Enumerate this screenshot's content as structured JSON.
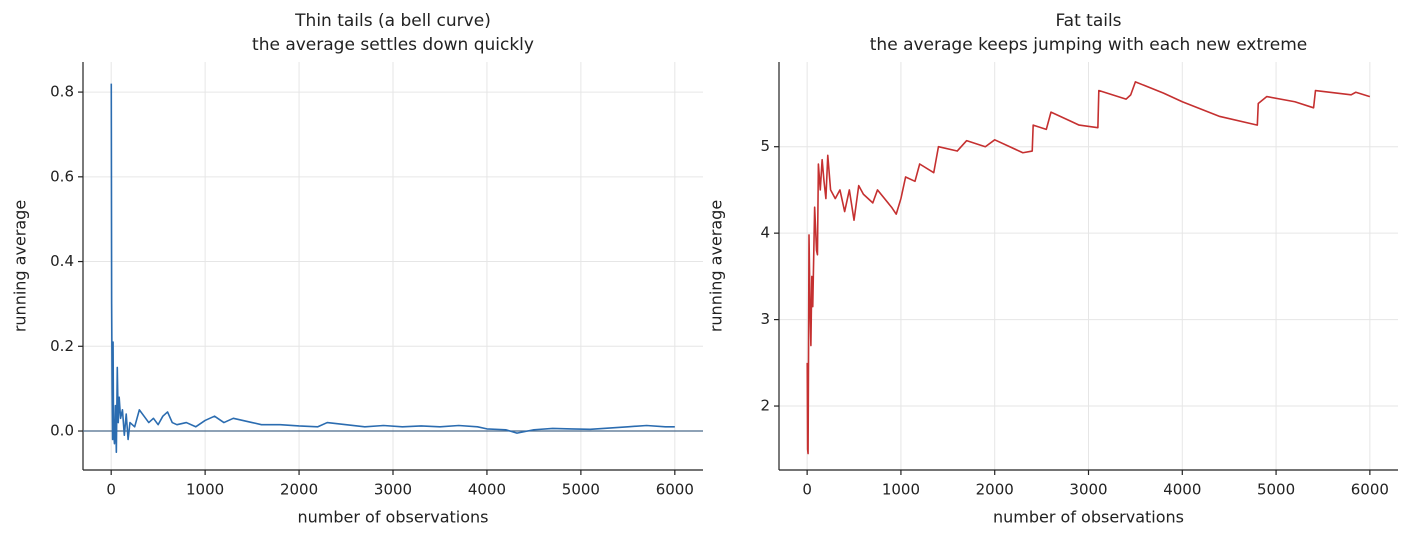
{
  "chart_data": [
    {
      "type": "line",
      "title": "Thin tails (a bell curve)",
      "subtitle": "the average settles down quickly",
      "x_label": "number of observations",
      "y_label": "running average",
      "color": "#2b6cb0",
      "hline": 0,
      "xlim": [
        -300,
        6300
      ],
      "ylim": [
        -0.092,
        0.871
      ],
      "xticks": [
        0,
        1000,
        2000,
        3000,
        4000,
        5000,
        6000
      ],
      "yticks": [
        {
          "value": 0,
          "label": "0.0"
        },
        0.2,
        0.4,
        0.6,
        0.8
      ],
      "grid": true,
      "x": [
        1,
        5,
        10,
        15,
        20,
        25,
        35,
        45,
        55,
        65,
        75,
        85,
        100,
        120,
        140,
        160,
        180,
        200,
        250,
        300,
        350,
        400,
        450,
        500,
        550,
        600,
        650,
        700,
        800,
        900,
        1000,
        1100,
        1200,
        1300,
        1400,
        1500,
        1600,
        1800,
        2000,
        2200,
        2300,
        2500,
        2700,
        2900,
        3100,
        3300,
        3500,
        3700,
        3900,
        4000,
        4200,
        4320,
        4500,
        4700,
        4900,
        5100,
        5300,
        5500,
        5700,
        5900,
        6000
      ],
      "values": [
        0.82,
        0.3,
        0.1,
        -0.02,
        0.21,
        0.0,
        -0.03,
        0.06,
        -0.05,
        0.15,
        0.02,
        0.08,
        0.03,
        0.05,
        -0.01,
        0.04,
        -0.02,
        0.02,
        0.01,
        0.05,
        0.035,
        0.02,
        0.03,
        0.015,
        0.035,
        0.045,
        0.02,
        0.015,
        0.02,
        0.01,
        0.025,
        0.035,
        0.02,
        0.03,
        0.025,
        0.02,
        0.015,
        0.015,
        0.012,
        0.01,
        0.02,
        0.015,
        0.01,
        0.013,
        0.01,
        0.012,
        0.01,
        0.013,
        0.01,
        0.005,
        0.003,
        -0.005,
        0.003,
        0.006,
        0.005,
        0.004,
        0.007,
        0.01,
        0.013,
        0.01,
        0.01
      ]
    },
    {
      "type": "line",
      "title": "Fat tails",
      "subtitle": "the average keeps jumping with each new extreme",
      "x_label": "number of observations",
      "y_label": "running average",
      "color": "#c53030",
      "xlim": [
        -300,
        6300
      ],
      "ylim": [
        1.26,
        5.98
      ],
      "xticks": [
        0,
        1000,
        2000,
        3000,
        4000,
        5000,
        6000
      ],
      "yticks": [
        2,
        3,
        4,
        5
      ],
      "grid": true,
      "x": [
        1,
        5,
        10,
        15,
        20,
        30,
        40,
        50,
        60,
        80,
        100,
        110,
        120,
        140,
        160,
        180,
        200,
        220,
        250,
        300,
        350,
        400,
        450,
        500,
        550,
        600,
        700,
        750,
        900,
        950,
        1000,
        1050,
        1150,
        1200,
        1350,
        1400,
        1600,
        1700,
        1900,
        2000,
        2300,
        2400,
        2410,
        2550,
        2600,
        2800,
        2900,
        3100,
        3110,
        3400,
        3450,
        3500,
        3800,
        4000,
        4400,
        4800,
        4810,
        4900,
        5200,
        5400,
        5420,
        5800,
        5850,
        6000
      ],
      "values": [
        2.5,
        1.5,
        1.45,
        2.6,
        3.98,
        3.2,
        2.7,
        3.5,
        3.15,
        4.3,
        3.8,
        3.75,
        4.8,
        4.5,
        4.85,
        4.6,
        4.4,
        4.9,
        4.5,
        4.4,
        4.5,
        4.25,
        4.5,
        4.15,
        4.55,
        4.45,
        4.35,
        4.5,
        4.3,
        4.22,
        4.4,
        4.65,
        4.6,
        4.8,
        4.7,
        5.0,
        4.95,
        5.07,
        5.0,
        5.08,
        4.93,
        4.95,
        5.25,
        5.2,
        5.4,
        5.3,
        5.25,
        5.22,
        5.65,
        5.55,
        5.6,
        5.75,
        5.62,
        5.52,
        5.35,
        5.25,
        5.5,
        5.58,
        5.52,
        5.45,
        5.65,
        5.6,
        5.63,
        5.58
      ]
    }
  ]
}
